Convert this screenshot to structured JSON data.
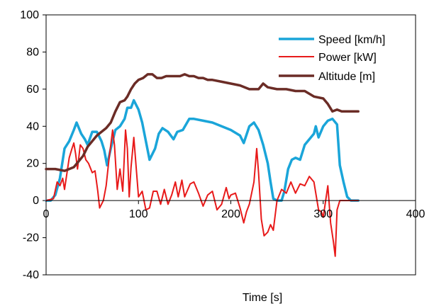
{
  "chart_data": {
    "type": "line",
    "title": "",
    "xlabel": "Time [s]",
    "ylabel": "",
    "xlim": [
      0,
      400
    ],
    "ylim": [
      -40,
      100
    ],
    "xticks": [
      0,
      100,
      200,
      300,
      400
    ],
    "yticks": [
      -40,
      -20,
      0,
      20,
      40,
      60,
      80,
      100
    ],
    "grid": false,
    "legend": "top-right",
    "series": [
      {
        "name": "Speed [km/h]",
        "color": "#1aa5d9",
        "points": [
          [
            0,
            0
          ],
          [
            5,
            0
          ],
          [
            10,
            3
          ],
          [
            15,
            12
          ],
          [
            20,
            28
          ],
          [
            25,
            32
          ],
          [
            30,
            38
          ],
          [
            33,
            42
          ],
          [
            38,
            36
          ],
          [
            42,
            33
          ],
          [
            45,
            30
          ],
          [
            50,
            37
          ],
          [
            55,
            37
          ],
          [
            60,
            32
          ],
          [
            63,
            27
          ],
          [
            66,
            19
          ],
          [
            70,
            28
          ],
          [
            75,
            38
          ],
          [
            80,
            40
          ],
          [
            85,
            44
          ],
          [
            88,
            50
          ],
          [
            92,
            50
          ],
          [
            95,
            54
          ],
          [
            100,
            49
          ],
          [
            104,
            42
          ],
          [
            108,
            32
          ],
          [
            112,
            22
          ],
          [
            118,
            28
          ],
          [
            122,
            36
          ],
          [
            126,
            39
          ],
          [
            132,
            37
          ],
          [
            138,
            33
          ],
          [
            142,
            37
          ],
          [
            148,
            38
          ],
          [
            155,
            44
          ],
          [
            160,
            44
          ],
          [
            170,
            43
          ],
          [
            180,
            42
          ],
          [
            190,
            40
          ],
          [
            200,
            38
          ],
          [
            210,
            35
          ],
          [
            214,
            31
          ],
          [
            220,
            40
          ],
          [
            225,
            42
          ],
          [
            230,
            38
          ],
          [
            235,
            30
          ],
          [
            240,
            20
          ],
          [
            243,
            10
          ],
          [
            246,
            1
          ],
          [
            250,
            0
          ],
          [
            255,
            0
          ],
          [
            258,
            5
          ],
          [
            262,
            17
          ],
          [
            266,
            22
          ],
          [
            270,
            23
          ],
          [
            275,
            22
          ],
          [
            280,
            30
          ],
          [
            285,
            33
          ],
          [
            290,
            36
          ],
          [
            292,
            40
          ],
          [
            295,
            34
          ],
          [
            300,
            40
          ],
          [
            305,
            43
          ],
          [
            310,
            44
          ],
          [
            315,
            41
          ],
          [
            318,
            19
          ],
          [
            322,
            10
          ],
          [
            326,
            2
          ],
          [
            330,
            0
          ],
          [
            335,
            0
          ],
          [
            338,
            0
          ]
        ]
      },
      {
        "name": "Power [kW]",
        "color": "#e81a1a",
        "points": [
          [
            0,
            0
          ],
          [
            8,
            1
          ],
          [
            12,
            10
          ],
          [
            15,
            8
          ],
          [
            18,
            12
          ],
          [
            20,
            6
          ],
          [
            25,
            23
          ],
          [
            28,
            28
          ],
          [
            30,
            31
          ],
          [
            32,
            25
          ],
          [
            34,
            17
          ],
          [
            37,
            30
          ],
          [
            40,
            28
          ],
          [
            43,
            22
          ],
          [
            46,
            20
          ],
          [
            50,
            15
          ],
          [
            53,
            16
          ],
          [
            56,
            5
          ],
          [
            58,
            -4
          ],
          [
            62,
            0
          ],
          [
            65,
            8
          ],
          [
            68,
            22
          ],
          [
            72,
            38
          ],
          [
            74,
            30
          ],
          [
            77,
            6
          ],
          [
            80,
            17
          ],
          [
            83,
            5
          ],
          [
            86,
            38
          ],
          [
            88,
            28
          ],
          [
            90,
            2
          ],
          [
            92,
            18
          ],
          [
            95,
            34
          ],
          [
            98,
            15
          ],
          [
            100,
            2
          ],
          [
            104,
            5
          ],
          [
            108,
            -5
          ],
          [
            112,
            -4
          ],
          [
            116,
            5
          ],
          [
            120,
            5
          ],
          [
            124,
            -2
          ],
          [
            128,
            6
          ],
          [
            132,
            -2
          ],
          [
            136,
            3
          ],
          [
            140,
            10
          ],
          [
            143,
            2
          ],
          [
            147,
            11
          ],
          [
            150,
            2
          ],
          [
            156,
            9
          ],
          [
            160,
            10
          ],
          [
            165,
            4
          ],
          [
            170,
            -3
          ],
          [
            175,
            3
          ],
          [
            180,
            5
          ],
          [
            185,
            -5
          ],
          [
            190,
            -2
          ],
          [
            195,
            7
          ],
          [
            198,
            1
          ],
          [
            200,
            3
          ],
          [
            205,
            4
          ],
          [
            210,
            -4
          ],
          [
            214,
            -12
          ],
          [
            217,
            -6
          ],
          [
            220,
            -2
          ],
          [
            225,
            10
          ],
          [
            228,
            28
          ],
          [
            230,
            15
          ],
          [
            233,
            -10
          ],
          [
            236,
            -19
          ],
          [
            240,
            -17
          ],
          [
            243,
            -13
          ],
          [
            246,
            -16
          ],
          [
            250,
            0
          ],
          [
            255,
            6
          ],
          [
            260,
            4
          ],
          [
            265,
            10
          ],
          [
            270,
            4
          ],
          [
            275,
            9
          ],
          [
            280,
            8
          ],
          [
            285,
            13
          ],
          [
            290,
            10
          ],
          [
            295,
            -5
          ],
          [
            298,
            -6
          ],
          [
            300,
            -9
          ],
          [
            305,
            8
          ],
          [
            308,
            -12
          ],
          [
            311,
            -22
          ],
          [
            313,
            -30
          ],
          [
            315,
            -5
          ],
          [
            318,
            0
          ],
          [
            325,
            0
          ],
          [
            338,
            0
          ]
        ]
      },
      {
        "name": "Altitude [m]",
        "color": "#6b2c26",
        "points": [
          [
            0,
            17
          ],
          [
            10,
            17
          ],
          [
            20,
            16
          ],
          [
            25,
            17
          ],
          [
            30,
            18
          ],
          [
            35,
            21
          ],
          [
            40,
            24
          ],
          [
            45,
            29
          ],
          [
            50,
            32
          ],
          [
            55,
            35
          ],
          [
            60,
            37
          ],
          [
            65,
            39
          ],
          [
            70,
            42
          ],
          [
            75,
            48
          ],
          [
            80,
            53
          ],
          [
            85,
            54
          ],
          [
            88,
            56
          ],
          [
            92,
            60
          ],
          [
            96,
            63
          ],
          [
            100,
            65
          ],
          [
            105,
            66
          ],
          [
            110,
            68
          ],
          [
            115,
            68
          ],
          [
            120,
            66
          ],
          [
            125,
            66
          ],
          [
            130,
            67
          ],
          [
            140,
            67
          ],
          [
            145,
            67
          ],
          [
            150,
            68
          ],
          [
            155,
            67
          ],
          [
            160,
            67
          ],
          [
            165,
            66
          ],
          [
            170,
            66
          ],
          [
            175,
            65
          ],
          [
            180,
            65
          ],
          [
            190,
            64
          ],
          [
            200,
            63
          ],
          [
            210,
            62
          ],
          [
            220,
            60
          ],
          [
            230,
            60
          ],
          [
            235,
            63
          ],
          [
            240,
            61
          ],
          [
            250,
            60
          ],
          [
            260,
            60
          ],
          [
            270,
            59
          ],
          [
            280,
            59
          ],
          [
            290,
            56
          ],
          [
            300,
            55
          ],
          [
            305,
            52
          ],
          [
            310,
            48
          ],
          [
            315,
            49
          ],
          [
            320,
            48
          ],
          [
            330,
            48
          ],
          [
            338,
            48
          ]
        ]
      }
    ]
  }
}
